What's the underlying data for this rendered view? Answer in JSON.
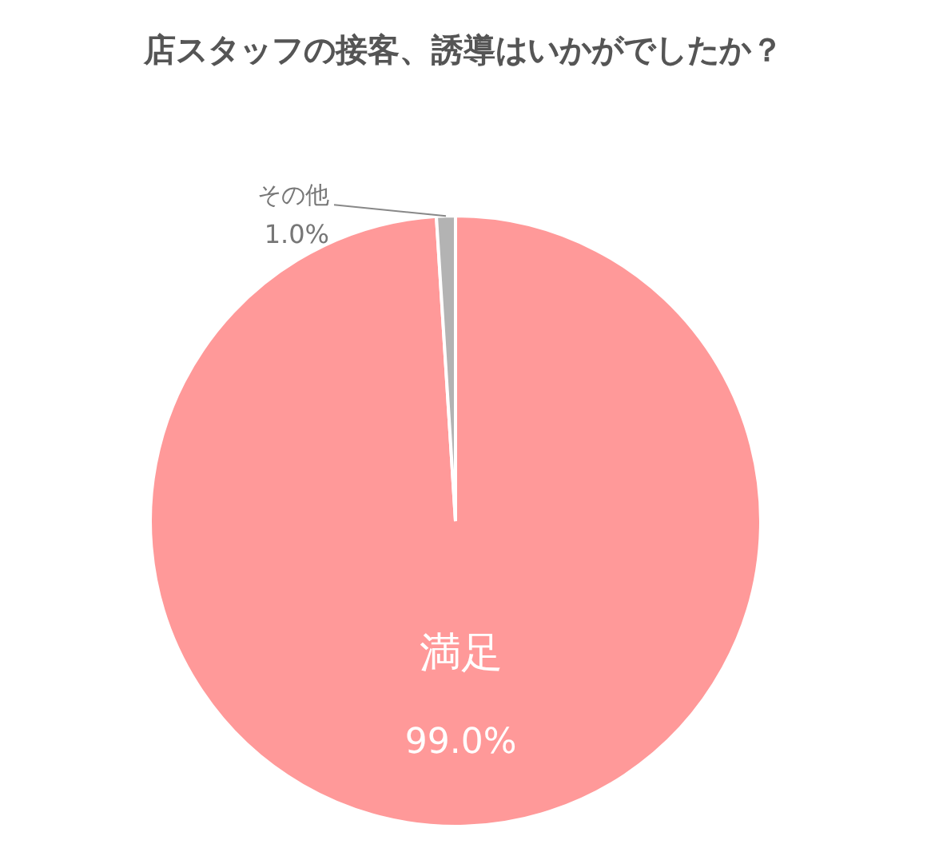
{
  "chart_data": {
    "type": "pie",
    "title": "店スタッフの接客、誘導はいかがでしたか？",
    "categories": [
      "満足",
      "その他"
    ],
    "values": [
      99.0,
      1.0
    ],
    "colors": [
      "#ff9999",
      "#b3b3b3"
    ],
    "value_labels": [
      "99.0%",
      "1.0%"
    ]
  }
}
